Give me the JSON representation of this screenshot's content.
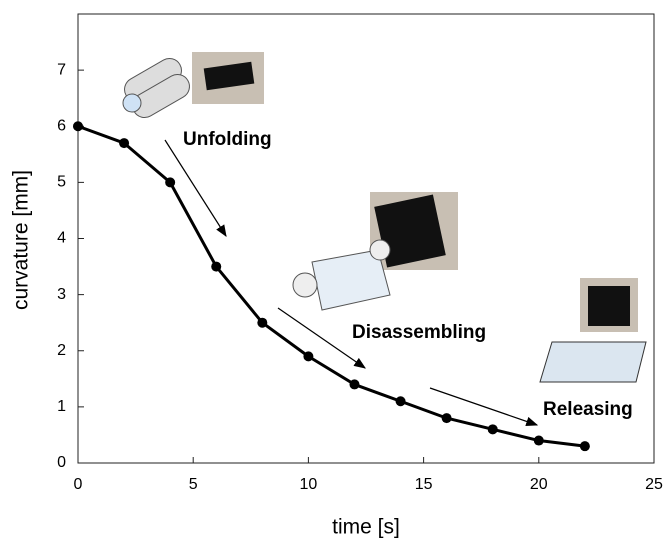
{
  "chart_data": {
    "type": "line",
    "xlabel": "time [s]",
    "ylabel": "curvature [mm]",
    "x": [
      0,
      2,
      4,
      6,
      8,
      10,
      12,
      14,
      16,
      18,
      20,
      22
    ],
    "values": [
      6,
      5.7,
      5,
      3.5,
      2.5,
      1.9,
      1.4,
      1.1,
      0.8,
      0.6,
      0.4,
      0.3
    ],
    "color": "#000000",
    "xlim": [
      0,
      25
    ],
    "xticks": [
      0,
      5,
      10,
      15,
      20,
      25
    ],
    "ylim": [
      0,
      8
    ],
    "yticks": [
      0,
      1,
      2,
      3,
      4,
      5,
      6,
      7
    ],
    "annotations": [
      "Unfolding",
      "Disassembling",
      "Releasing"
    ]
  }
}
